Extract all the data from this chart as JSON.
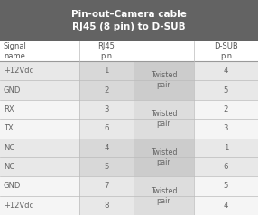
{
  "title_line1": "Pin-out–Camera cable",
  "title_line2": "RJ45 (8 pin) to D-SUB",
  "title_bg": "#636363",
  "title_color": "#ffffff",
  "header_bg": "#ffffff",
  "header_color": "#555555",
  "row_bg_white": "#ffffff",
  "row_bg_light": "#e0e0e0",
  "row_bg_mid": "#d0d0d0",
  "text_color": "#666666",
  "col_headers": [
    "Signal\nname",
    "RJ45\npin",
    "",
    "D-SUB\npin"
  ],
  "rows": [
    {
      "signal": "+12Vdc",
      "rj45": "1",
      "dsub": "4",
      "group": 0
    },
    {
      "signal": "GND",
      "rj45": "2",
      "dsub": "5",
      "group": 0
    },
    {
      "signal": "RX",
      "rj45": "3",
      "dsub": "2",
      "group": 1
    },
    {
      "signal": "TX",
      "rj45": "6",
      "dsub": "3",
      "group": 1
    },
    {
      "signal": "NC",
      "rj45": "4",
      "dsub": "1",
      "group": 2
    },
    {
      "signal": "NC",
      "rj45": "5",
      "dsub": "6",
      "group": 2
    },
    {
      "signal": "GND",
      "rj45": "7",
      "dsub": "5",
      "group": 3
    },
    {
      "signal": "+12Vdc",
      "rj45": "8",
      "dsub": "4",
      "group": 3
    }
  ],
  "figsize": [
    2.86,
    2.39
  ],
  "dpi": 100
}
